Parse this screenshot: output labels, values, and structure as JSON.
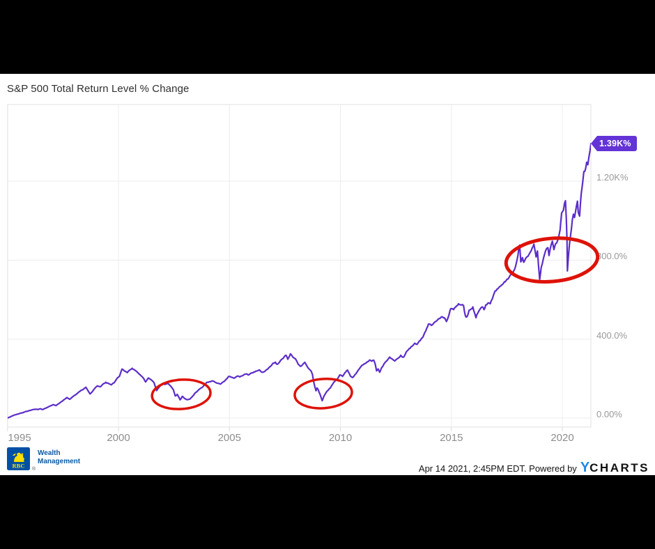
{
  "page": {
    "background": "#000000",
    "canvas_background": "#ffffff"
  },
  "chart_data": {
    "type": "line",
    "title": "S&P 500 Total Return Level % Change",
    "xlabel": "",
    "ylabel": "",
    "grid": true,
    "legend": false,
    "x_ticks": [
      1995,
      2000,
      2005,
      2010,
      2015,
      2020
    ],
    "x_tick_labels": [
      "1995",
      "2000",
      "2005",
      "2010",
      "2015",
      "2020"
    ],
    "y_ticks": [
      0,
      400,
      800,
      1200
    ],
    "y_tick_labels": [
      "0.00%",
      "400.0%",
      "800.0%",
      "1.20K%"
    ],
    "x_range": [
      1995,
      2021.3
    ],
    "y_range": [
      -55,
      1588
    ],
    "line_color": "#5b2dc9",
    "last_value_label": "1.39K%",
    "last_value_pct": 1390,
    "last_value_year": 2021.29,
    "badge_color": "#6333d6",
    "annotation_color": "#de1207",
    "annotations": [
      {
        "shape": "ellipse",
        "purpose": "drawdown-highlight",
        "cx_year": 2002.83,
        "cy_pct": 120,
        "rx_years": 1.32,
        "ry_pct": 74,
        "rotation_deg": -4,
        "stroke_px": 3.5
      },
      {
        "shape": "ellipse",
        "purpose": "drawdown-highlight",
        "cx_year": 2009.23,
        "cy_pct": 124,
        "rx_years": 1.29,
        "ry_pct": 74,
        "rotation_deg": -4,
        "stroke_px": 3.5
      },
      {
        "shape": "ellipse",
        "purpose": "drawdown-highlight",
        "cx_year": 2019.53,
        "cy_pct": 801,
        "rx_years": 2.07,
        "ry_pct": 109,
        "rotation_deg": -5,
        "stroke_px": 5
      }
    ],
    "series": [
      {
        "name": "S&P 500 Total Return Level % Change",
        "points": [
          [
            1995.0,
            0
          ],
          [
            1995.13,
            6
          ],
          [
            1995.25,
            12
          ],
          [
            1995.38,
            17
          ],
          [
            1995.5,
            21
          ],
          [
            1995.63,
            26
          ],
          [
            1995.75,
            30
          ],
          [
            1995.88,
            34
          ],
          [
            1996.0,
            38
          ],
          [
            1996.13,
            42
          ],
          [
            1996.25,
            45
          ],
          [
            1996.38,
            43
          ],
          [
            1996.5,
            47
          ],
          [
            1996.57,
            43
          ],
          [
            1996.7,
            49
          ],
          [
            1996.82,
            55
          ],
          [
            1996.95,
            62
          ],
          [
            1997.07,
            68
          ],
          [
            1997.18,
            63
          ],
          [
            1997.3,
            72
          ],
          [
            1997.44,
            84
          ],
          [
            1997.56,
            94
          ],
          [
            1997.68,
            104
          ],
          [
            1997.8,
            95
          ],
          [
            1997.93,
            107
          ],
          [
            1998.05,
            116
          ],
          [
            1998.18,
            128
          ],
          [
            1998.3,
            139
          ],
          [
            1998.43,
            147
          ],
          [
            1998.53,
            156
          ],
          [
            1998.62,
            140
          ],
          [
            1998.72,
            122
          ],
          [
            1998.8,
            131
          ],
          [
            1998.93,
            150
          ],
          [
            1999.05,
            163
          ],
          [
            1999.18,
            158
          ],
          [
            1999.3,
            172
          ],
          [
            1999.43,
            181
          ],
          [
            1999.55,
            175
          ],
          [
            1999.68,
            168
          ],
          [
            1999.8,
            178
          ],
          [
            1999.93,
            200
          ],
          [
            2000.05,
            212
          ],
          [
            2000.16,
            248
          ],
          [
            2000.28,
            238
          ],
          [
            2000.4,
            230
          ],
          [
            2000.5,
            242
          ],
          [
            2000.62,
            252
          ],
          [
            2000.72,
            245
          ],
          [
            2000.85,
            232
          ],
          [
            2000.97,
            220
          ],
          [
            2001.1,
            205
          ],
          [
            2001.22,
            183
          ],
          [
            2001.35,
            203
          ],
          [
            2001.48,
            193
          ],
          [
            2001.6,
            180
          ],
          [
            2001.72,
            139
          ],
          [
            2001.85,
            158
          ],
          [
            2001.97,
            174
          ],
          [
            2002.1,
            170
          ],
          [
            2002.22,
            176
          ],
          [
            2002.35,
            162
          ],
          [
            2002.47,
            144
          ],
          [
            2002.56,
            112
          ],
          [
            2002.65,
            120
          ],
          [
            2002.78,
            92
          ],
          [
            2002.88,
            110
          ],
          [
            2002.97,
            100
          ],
          [
            2003.1,
            93
          ],
          [
            2003.22,
            96
          ],
          [
            2003.35,
            112
          ],
          [
            2003.47,
            128
          ],
          [
            2003.6,
            142
          ],
          [
            2003.72,
            152
          ],
          [
            2003.85,
            165
          ],
          [
            2003.97,
            180
          ],
          [
            2004.1,
            184
          ],
          [
            2004.22,
            188
          ],
          [
            2004.35,
            182
          ],
          [
            2004.47,
            176
          ],
          [
            2004.6,
            172
          ],
          [
            2004.72,
            183
          ],
          [
            2004.85,
            196
          ],
          [
            2004.97,
            211
          ],
          [
            2005.1,
            206
          ],
          [
            2005.22,
            202
          ],
          [
            2005.35,
            212
          ],
          [
            2005.47,
            208
          ],
          [
            2005.6,
            215
          ],
          [
            2005.72,
            222
          ],
          [
            2005.85,
            218
          ],
          [
            2005.97,
            227
          ],
          [
            2006.1,
            233
          ],
          [
            2006.22,
            238
          ],
          [
            2006.35,
            244
          ],
          [
            2006.47,
            232
          ],
          [
            2006.6,
            237
          ],
          [
            2006.72,
            247
          ],
          [
            2006.85,
            262
          ],
          [
            2006.97,
            278
          ],
          [
            2007.07,
            283
          ],
          [
            2007.16,
            272
          ],
          [
            2007.3,
            291
          ],
          [
            2007.43,
            303
          ],
          [
            2007.55,
            318
          ],
          [
            2007.63,
            298
          ],
          [
            2007.75,
            325
          ],
          [
            2007.85,
            310
          ],
          [
            2007.97,
            301
          ],
          [
            2008.1,
            272
          ],
          [
            2008.2,
            262
          ],
          [
            2008.3,
            271
          ],
          [
            2008.4,
            282
          ],
          [
            2008.5,
            262
          ],
          [
            2008.6,
            247
          ],
          [
            2008.68,
            238
          ],
          [
            2008.74,
            221
          ],
          [
            2008.79,
            186
          ],
          [
            2008.85,
            158
          ],
          [
            2008.9,
            138
          ],
          [
            2008.95,
            152
          ],
          [
            2009.0,
            143
          ],
          [
            2009.08,
            121
          ],
          [
            2009.18,
            88
          ],
          [
            2009.26,
            111
          ],
          [
            2009.35,
            128
          ],
          [
            2009.45,
            141
          ],
          [
            2009.55,
            153
          ],
          [
            2009.65,
            172
          ],
          [
            2009.75,
            186
          ],
          [
            2009.85,
            196
          ],
          [
            2009.97,
            218
          ],
          [
            2010.1,
            211
          ],
          [
            2010.2,
            229
          ],
          [
            2010.32,
            243
          ],
          [
            2010.45,
            213
          ],
          [
            2010.55,
            205
          ],
          [
            2010.65,
            219
          ],
          [
            2010.75,
            233
          ],
          [
            2010.85,
            249
          ],
          [
            2010.97,
            267
          ],
          [
            2011.1,
            276
          ],
          [
            2011.22,
            285
          ],
          [
            2011.32,
            294
          ],
          [
            2011.42,
            288
          ],
          [
            2011.5,
            293
          ],
          [
            2011.58,
            268
          ],
          [
            2011.63,
            239
          ],
          [
            2011.7,
            249
          ],
          [
            2011.77,
            232
          ],
          [
            2011.85,
            253
          ],
          [
            2011.97,
            275
          ],
          [
            2012.1,
            291
          ],
          [
            2012.22,
            309
          ],
          [
            2012.35,
            298
          ],
          [
            2012.45,
            289
          ],
          [
            2012.6,
            303
          ],
          [
            2012.72,
            318
          ],
          [
            2012.85,
            309
          ],
          [
            2012.97,
            335
          ],
          [
            2013.1,
            352
          ],
          [
            2013.22,
            363
          ],
          [
            2013.35,
            379
          ],
          [
            2013.45,
            373
          ],
          [
            2013.6,
            393
          ],
          [
            2013.72,
            410
          ],
          [
            2013.85,
            442
          ],
          [
            2013.97,
            476
          ],
          [
            2014.1,
            469
          ],
          [
            2014.22,
            483
          ],
          [
            2014.35,
            493
          ],
          [
            2014.5,
            506
          ],
          [
            2014.6,
            513
          ],
          [
            2014.72,
            503
          ],
          [
            2014.78,
            489
          ],
          [
            2014.9,
            526
          ],
          [
            2014.97,
            554
          ],
          [
            2015.1,
            549
          ],
          [
            2015.2,
            563
          ],
          [
            2015.32,
            579
          ],
          [
            2015.45,
            573
          ],
          [
            2015.55,
            569
          ],
          [
            2015.63,
            519
          ],
          [
            2015.7,
            513
          ],
          [
            2015.8,
            546
          ],
          [
            2015.9,
            553
          ],
          [
            2015.97,
            563
          ],
          [
            2016.05,
            531
          ],
          [
            2016.11,
            508
          ],
          [
            2016.18,
            529
          ],
          [
            2016.3,
            553
          ],
          [
            2016.4,
            563
          ],
          [
            2016.47,
            549
          ],
          [
            2016.55,
            573
          ],
          [
            2016.65,
            583
          ],
          [
            2016.75,
            579
          ],
          [
            2016.85,
            605
          ],
          [
            2016.97,
            643
          ],
          [
            2017.1,
            655
          ],
          [
            2017.22,
            669
          ],
          [
            2017.35,
            683
          ],
          [
            2017.47,
            697
          ],
          [
            2017.6,
            713
          ],
          [
            2017.72,
            729
          ],
          [
            2017.85,
            753
          ],
          [
            2017.97,
            806
          ],
          [
            2018.04,
            861
          ],
          [
            2018.08,
            876
          ],
          [
            2018.13,
            791
          ],
          [
            2018.2,
            813
          ],
          [
            2018.26,
            789
          ],
          [
            2018.35,
            809
          ],
          [
            2018.45,
            819
          ],
          [
            2018.55,
            839
          ],
          [
            2018.65,
            863
          ],
          [
            2018.72,
            881
          ],
          [
            2018.78,
            843
          ],
          [
            2018.82,
            816
          ],
          [
            2018.88,
            846
          ],
          [
            2018.93,
            769
          ],
          [
            2018.98,
            702
          ],
          [
            2019.05,
            763
          ],
          [
            2019.15,
            809
          ],
          [
            2019.25,
            849
          ],
          [
            2019.35,
            863
          ],
          [
            2019.4,
            823
          ],
          [
            2019.5,
            879
          ],
          [
            2019.55,
            896
          ],
          [
            2019.62,
            853
          ],
          [
            2019.7,
            883
          ],
          [
            2019.8,
            903
          ],
          [
            2019.9,
            953
          ],
          [
            2019.97,
            1039
          ],
          [
            2020.05,
            1053
          ],
          [
            2020.1,
            1089
          ],
          [
            2020.14,
            1101
          ],
          [
            2020.18,
            1011
          ],
          [
            2020.21,
            906
          ],
          [
            2020.23,
            745
          ],
          [
            2020.27,
            813
          ],
          [
            2020.32,
            879
          ],
          [
            2020.38,
            933
          ],
          [
            2020.45,
            1003
          ],
          [
            2020.5,
            1033
          ],
          [
            2020.55,
            1016
          ],
          [
            2020.6,
            1049
          ],
          [
            2020.68,
            1099
          ],
          [
            2020.72,
            1041
          ],
          [
            2020.78,
            1023
          ],
          [
            2020.85,
            1136
          ],
          [
            2020.92,
            1196
          ],
          [
            2020.97,
            1249
          ],
          [
            2021.05,
            1263
          ],
          [
            2021.1,
            1296
          ],
          [
            2021.15,
            1283
          ],
          [
            2021.2,
            1323
          ],
          [
            2021.25,
            1356
          ],
          [
            2021.29,
            1390
          ]
        ]
      }
    ]
  },
  "branding": {
    "rbc_text": "RBC",
    "wealth_line1": "Wealth",
    "wealth_line2": "Management",
    "registered": "®",
    "rbc_blue": "#0051a5",
    "rbc_yellow": "#fedf01"
  },
  "footer": {
    "timestamp": "Apr 14 2021, 2:45PM EDT. Powered by",
    "logo_y": "Y",
    "logo_charts": "CHARTS"
  }
}
